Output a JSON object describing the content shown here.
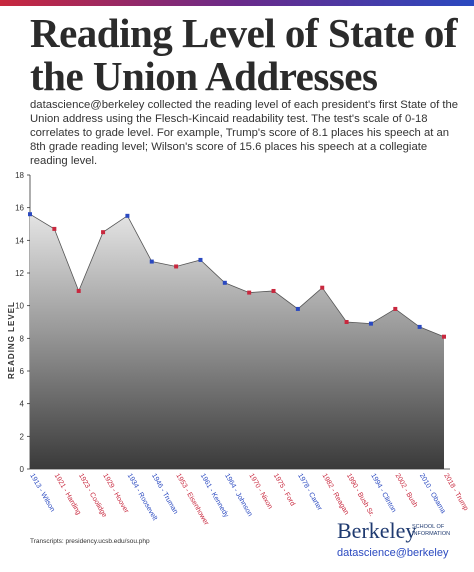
{
  "chart_data": {
    "type": "line",
    "title": "Reading Level of State of the Union Addresses",
    "subtitle": "datascience@berkeley collected the reading level of each president's first State of the Union address using the Flesch-Kincaid readability test. The test's scale of 0-18 correlates to grade level. For example, Trump's score of 8.1 places his speech at an 8th grade reading level; Wilson's score of 15.6 places his speech at a collegiate reading level.",
    "y_label": "READING LEVEL",
    "categories": [
      "1913 - Wilson",
      "1921 - Harding",
      "1923 - Coolidge",
      "1929 - Hoover",
      "1934 - Roosevelt",
      "1946 - Truman",
      "1953 - Eisenhower",
      "1961 - Kennedy",
      "1964 - Johnson",
      "1970 - Nixon",
      "1975 - Ford",
      "1978 - Carter",
      "1982 - Reagan",
      "1990 - Bush Sr.",
      "1994 - Clinton",
      "2002 - Bush",
      "2010 - Obama",
      "2018 - Trump"
    ],
    "series": [
      {
        "name": "Reading level",
        "color": "#555555",
        "values": [
          15.6,
          14.7,
          10.9,
          14.5,
          15.5,
          12.7,
          12.4,
          12.8,
          11.4,
          10.8,
          10.9,
          9.8,
          11.1,
          9.0,
          8.9,
          9.8,
          8.7,
          8.1
        ],
        "point_colors": [
          "#2a49c0",
          "#c8283e",
          "#c8283e",
          "#c8283e",
          "#2a49c0",
          "#2a49c0",
          "#c8283e",
          "#2a49c0",
          "#2a49c0",
          "#c8283e",
          "#c8283e",
          "#2a49c0",
          "#c8283e",
          "#c8283e",
          "#2a49c0",
          "#c8283e",
          "#2a49c0",
          "#c8283e"
        ]
      }
    ],
    "ylim": [
      0,
      18
    ],
    "yticks": [
      0,
      2,
      4,
      6,
      8,
      10,
      12,
      14,
      16,
      18
    ]
  },
  "footer": {
    "source": "Transcripts: presidency.ucsb.edu/sou.php",
    "logo": "Berkeley",
    "logo_sub": [
      "SCHOOL OF",
      "INFORMATION"
    ],
    "handle": "datascience@berkeley"
  }
}
